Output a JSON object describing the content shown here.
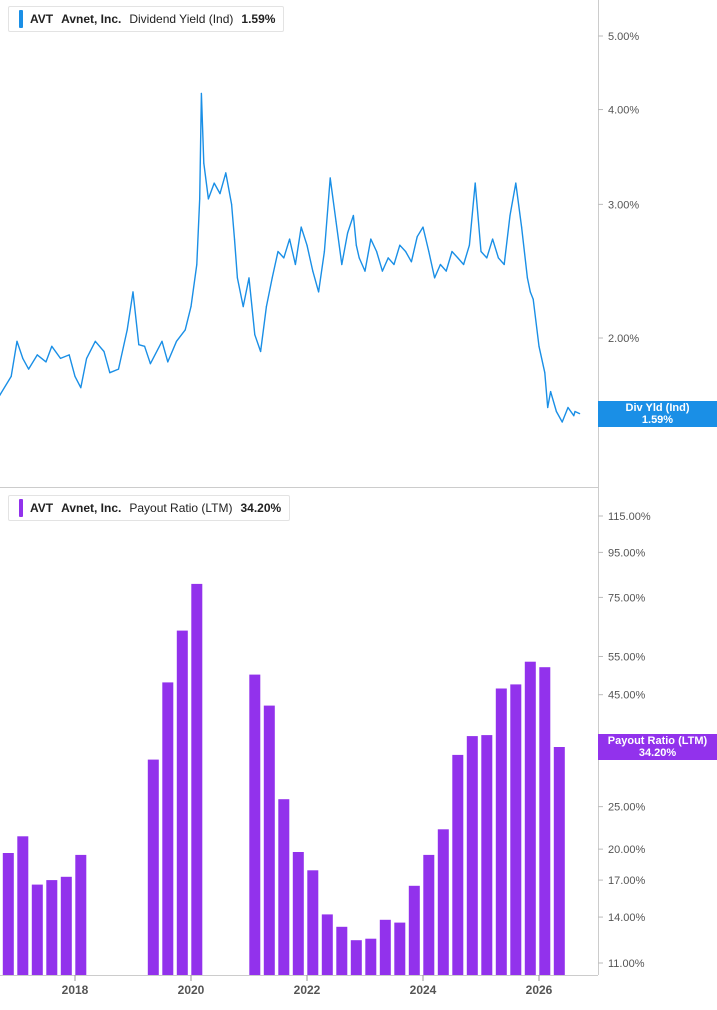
{
  "colors": {
    "yield": "#1a8fe6",
    "payout": "#9232ec",
    "axis_text": "#555555",
    "divider": "#cccccc"
  },
  "top_panel": {
    "ticker": "AVT",
    "company": "Avnet, Inc.",
    "metric": "Dividend Yield (Ind)",
    "value": "1.59%",
    "flag_label": "Div Yld (Ind)",
    "flag_value": "1.59%"
  },
  "bottom_panel": {
    "ticker": "AVT",
    "company": "Avnet, Inc.",
    "metric": "Payout Ratio (LTM)",
    "value": "34.20%",
    "flag_label": "Payout Ratio (LTM)",
    "flag_value": "34.20%"
  },
  "chart_data": [
    {
      "type": "line",
      "series": [
        {
          "name": "Dividend Yield (Ind)",
          "x": [
            2016.0,
            2016.2,
            2016.35,
            2016.5,
            2016.7,
            2016.9,
            2017.0,
            2017.1,
            2017.2,
            2017.35,
            2017.5,
            2017.6,
            2017.75,
            2017.9,
            2018.0,
            2018.1,
            2018.2,
            2018.35,
            2018.5,
            2018.6,
            2018.75,
            2018.9,
            2019.0,
            2019.1,
            2019.2,
            2019.3,
            2019.5,
            2019.6,
            2019.75,
            2019.9,
            2020.0,
            2020.1,
            2020.15,
            2020.18,
            2020.22,
            2020.3,
            2020.4,
            2020.5,
            2020.6,
            2020.7,
            2020.75,
            2020.8,
            2020.9,
            2021.0,
            2021.1,
            2021.2,
            2021.3,
            2021.4,
            2021.5,
            2021.6,
            2021.7,
            2021.8,
            2021.9,
            2022.0,
            2022.1,
            2022.2,
            2022.3,
            2022.4,
            2022.5,
            2022.6,
            2022.7,
            2022.8,
            2022.85,
            2022.9,
            2023.0,
            2023.1,
            2023.2,
            2023.3,
            2023.4,
            2023.5,
            2023.6,
            2023.7,
            2023.8,
            2023.9,
            2024.0,
            2024.1,
            2024.2,
            2024.3,
            2024.4,
            2024.5,
            2024.6,
            2024.7,
            2024.8,
            2024.9,
            2025.0,
            2025.1,
            2025.2,
            2025.3,
            2025.4,
            2025.5,
            2025.6,
            2025.7,
            2025.8,
            2025.85,
            2025.9,
            2026.0,
            2026.1,
            2026.15,
            2026.2,
            2026.3,
            2026.4,
            2026.5,
            2026.6,
            2026.62,
            2026.7
          ],
          "values": [
            1.72,
            1.6,
            1.52,
            1.62,
            1.68,
            1.78,
            1.98,
            1.88,
            1.82,
            1.9,
            1.86,
            1.95,
            1.88,
            1.9,
            1.78,
            1.72,
            1.88,
            1.98,
            1.92,
            1.8,
            1.82,
            2.05,
            2.3,
            1.96,
            1.95,
            1.85,
            1.98,
            1.86,
            1.98,
            2.05,
            2.2,
            2.5,
            3.05,
            4.2,
            3.4,
            3.05,
            3.2,
            3.1,
            3.3,
            3.0,
            2.7,
            2.4,
            2.2,
            2.4,
            2.02,
            1.92,
            2.2,
            2.4,
            2.6,
            2.55,
            2.7,
            2.5,
            2.8,
            2.65,
            2.45,
            2.3,
            2.6,
            3.25,
            2.85,
            2.5,
            2.75,
            2.9,
            2.65,
            2.55,
            2.45,
            2.7,
            2.6,
            2.45,
            2.55,
            2.5,
            2.65,
            2.6,
            2.52,
            2.72,
            2.8,
            2.6,
            2.4,
            2.5,
            2.45,
            2.6,
            2.55,
            2.5,
            2.65,
            3.2,
            2.6,
            2.55,
            2.7,
            2.55,
            2.5,
            2.9,
            3.2,
            2.8,
            2.4,
            2.3,
            2.25,
            1.95,
            1.8,
            1.62,
            1.7,
            1.6,
            1.55,
            1.62,
            1.58,
            1.6,
            1.59
          ]
        }
      ],
      "y_axis": {
        "scale": "log",
        "ticks": [
          "5.00%",
          "4.00%",
          "3.00%",
          "2.00%"
        ],
        "tick_values": [
          5.0,
          4.0,
          3.0,
          2.0
        ]
      }
    },
    {
      "type": "bar",
      "series": [
        {
          "name": "Payout Ratio (LTM)",
          "x": [
            2016.85,
            2017.1,
            2017.35,
            2017.6,
            2017.85,
            2018.1,
            2019.35,
            2019.6,
            2019.85,
            2020.1,
            2021.1,
            2021.35,
            2021.6,
            2021.85,
            2022.1,
            2022.35,
            2022.6,
            2022.85,
            2023.1,
            2023.35,
            2023.6,
            2023.85,
            2024.1,
            2024.35,
            2024.6,
            2024.85,
            2025.1,
            2025.35,
            2025.6,
            2025.85,
            2026.1,
            2026.35
          ],
          "values": [
            19.6,
            21.4,
            16.6,
            17.0,
            17.3,
            19.4,
            32.0,
            48.0,
            63.0,
            80.5,
            50.0,
            42.5,
            26.0,
            19.7,
            17.9,
            14.2,
            13.3,
            12.4,
            12.5,
            13.8,
            13.6,
            16.5,
            19.4,
            22.2,
            32.8,
            36.2,
            36.4,
            46.5,
            47.5,
            53.5,
            52.0,
            34.2
          ]
        }
      ],
      "y_axis": {
        "scale": "log",
        "ticks": [
          "115.00%",
          "95.00%",
          "75.00%",
          "55.00%",
          "45.00%",
          "25.00%",
          "20.00%",
          "17.00%",
          "14.00%",
          "11.00%"
        ],
        "tick_values": [
          115,
          95,
          75,
          55,
          45,
          25,
          20,
          17,
          14,
          11
        ]
      },
      "x_axis": {
        "ticks": [
          "2018",
          "2020",
          "2022",
          "2024",
          "2026"
        ],
        "tick_values": [
          2018,
          2020,
          2022,
          2024,
          2026
        ]
      }
    }
  ]
}
